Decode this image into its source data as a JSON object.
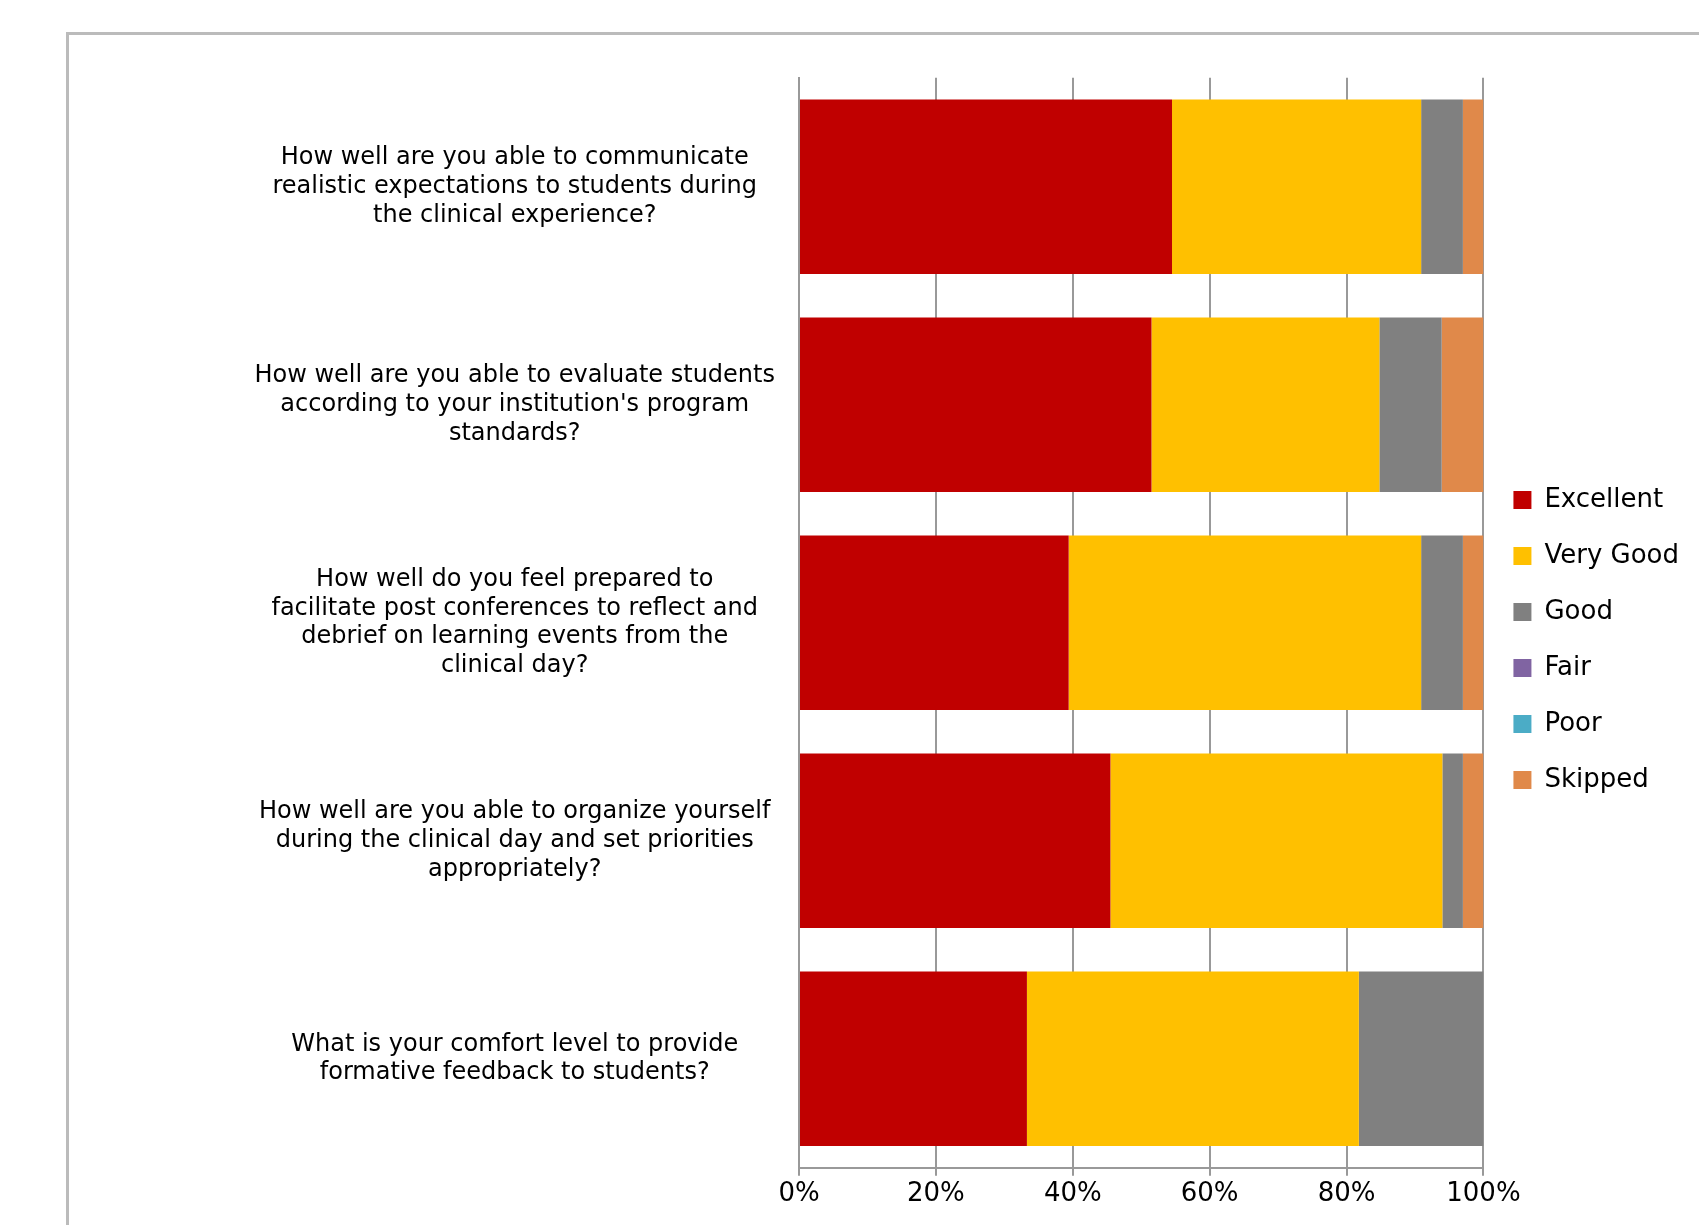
{
  "chart_data": {
    "type": "bar",
    "orientation": "horizontal",
    "stacked": true,
    "categories": [
      "How well are you able to communicate realistic expectations to students during the clinical experience?",
      "How well are you able to evaluate students according to your institution's program standards?",
      "How well do you feel prepared to facilitate post conferences to reflect and debrief on learning events from the clinical day?",
      "How well are you able to organize yourself during the clinical day and set priorities appropriately?",
      "What is your comfort level to provide formative feedback to students?"
    ],
    "series": [
      {
        "name": "Excellent",
        "color": "#c00000",
        "values": [
          54.5,
          51.5,
          39.4,
          45.5,
          33.3
        ]
      },
      {
        "name": "Very Good",
        "color": "#ffc000",
        "values": [
          36.4,
          33.3,
          51.5,
          48.5,
          48.5
        ]
      },
      {
        "name": "Good",
        "color": "#808080",
        "values": [
          6.1,
          9.1,
          6.1,
          3.0,
          18.2
        ]
      },
      {
        "name": "Fair",
        "color": "#8064a2",
        "values": [
          0,
          0,
          0,
          0,
          0
        ]
      },
      {
        "name": "Poor",
        "color": "#4bacc6",
        "values": [
          0,
          0,
          0,
          0,
          0
        ]
      },
      {
        "name": "Skipped",
        "color": "#e0894a",
        "values": [
          3.0,
          6.1,
          3.0,
          3.0,
          0
        ]
      }
    ],
    "xlim": [
      0,
      100
    ],
    "xticks": [
      {
        "value": 0,
        "label": "0%"
      },
      {
        "value": 20,
        "label": "20%"
      },
      {
        "value": 40,
        "label": "40%"
      },
      {
        "value": 60,
        "label": "60%"
      },
      {
        "value": 80,
        "label": "80%"
      },
      {
        "value": 100,
        "label": "100%"
      }
    ],
    "grid": "x",
    "legend": "right"
  }
}
